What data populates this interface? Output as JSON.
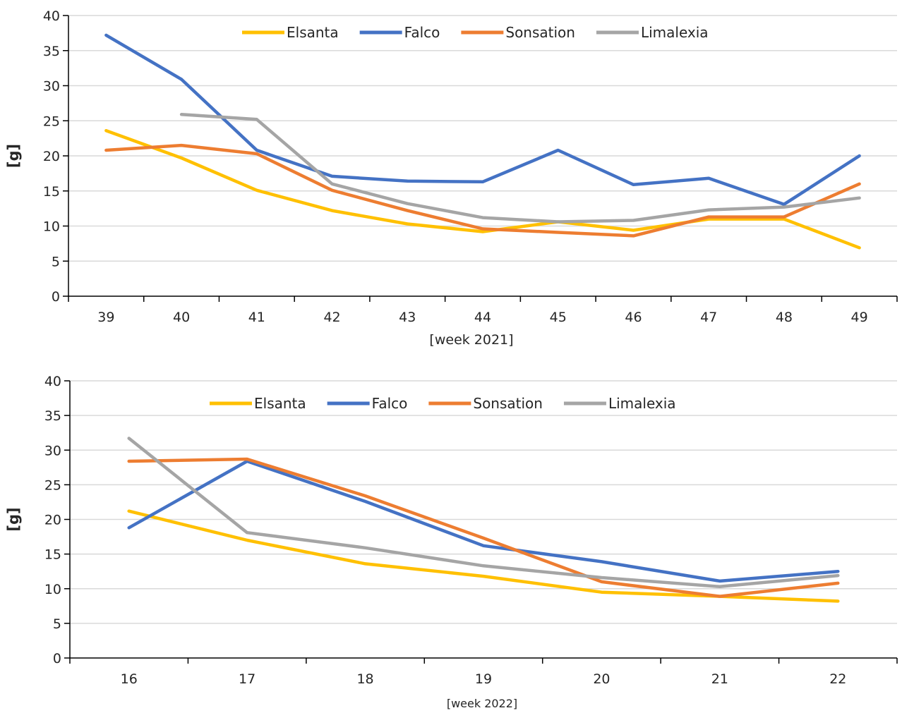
{
  "chart_data": [
    {
      "type": "line",
      "xlabel": "[week 2021]",
      "ylabel": "[g]",
      "ylim": [
        0,
        40
      ],
      "yticks": [
        "0",
        "5",
        "10",
        "15",
        "20",
        "25",
        "30",
        "35",
        "40"
      ],
      "grid": true,
      "legend_position": "top",
      "categories": [
        "39",
        "40",
        "41",
        "42",
        "43",
        "44",
        "45",
        "46",
        "47",
        "48",
        "49"
      ],
      "series": [
        {
          "name": "Elsanta",
          "color": "#FFC000",
          "values": [
            23.6,
            19.7,
            15.1,
            12.2,
            10.3,
            9.2,
            10.6,
            9.4,
            11.0,
            11.0,
            6.9
          ]
        },
        {
          "name": "Falco",
          "color": "#4472C4",
          "values": [
            37.2,
            30.9,
            20.8,
            17.1,
            16.4,
            16.3,
            20.8,
            15.9,
            16.8,
            13.1,
            20.0
          ]
        },
        {
          "name": "Sonsation",
          "color": "#ED7D31",
          "values": [
            20.8,
            21.5,
            20.3,
            15.1,
            12.2,
            9.6,
            9.1,
            8.6,
            11.3,
            11.3,
            16.0
          ]
        },
        {
          "name": "Limalexia",
          "color": "#A5A5A5",
          "values": [
            null,
            25.9,
            25.2,
            16.0,
            13.2,
            11.2,
            10.6,
            10.8,
            12.3,
            12.7,
            14.0
          ]
        }
      ]
    },
    {
      "type": "line",
      "xlabel": "[week 2022]",
      "ylabel": "[g]",
      "ylim": [
        0,
        40
      ],
      "yticks": [
        "0",
        "5",
        "10",
        "15",
        "20",
        "25",
        "30",
        "35",
        "40"
      ],
      "grid": true,
      "legend_position": "top",
      "categories": [
        "16",
        "17",
        "18",
        "19",
        "20",
        "21",
        "22"
      ],
      "series": [
        {
          "name": "Elsanta",
          "color": "#FFC000",
          "values": [
            21.2,
            17.0,
            13.6,
            11.8,
            9.5,
            8.9,
            8.2
          ]
        },
        {
          "name": "Falco",
          "color": "#4472C4",
          "values": [
            18.8,
            28.4,
            22.6,
            16.2,
            13.9,
            11.1,
            12.5
          ]
        },
        {
          "name": "Sonsation",
          "color": "#ED7D31",
          "values": [
            28.4,
            28.7,
            23.4,
            17.3,
            11.0,
            8.9,
            10.8
          ]
        },
        {
          "name": "Limalexia",
          "color": "#A5A5A5",
          "values": [
            31.7,
            18.1,
            15.9,
            13.3,
            11.6,
            10.3,
            11.9
          ]
        }
      ]
    }
  ]
}
